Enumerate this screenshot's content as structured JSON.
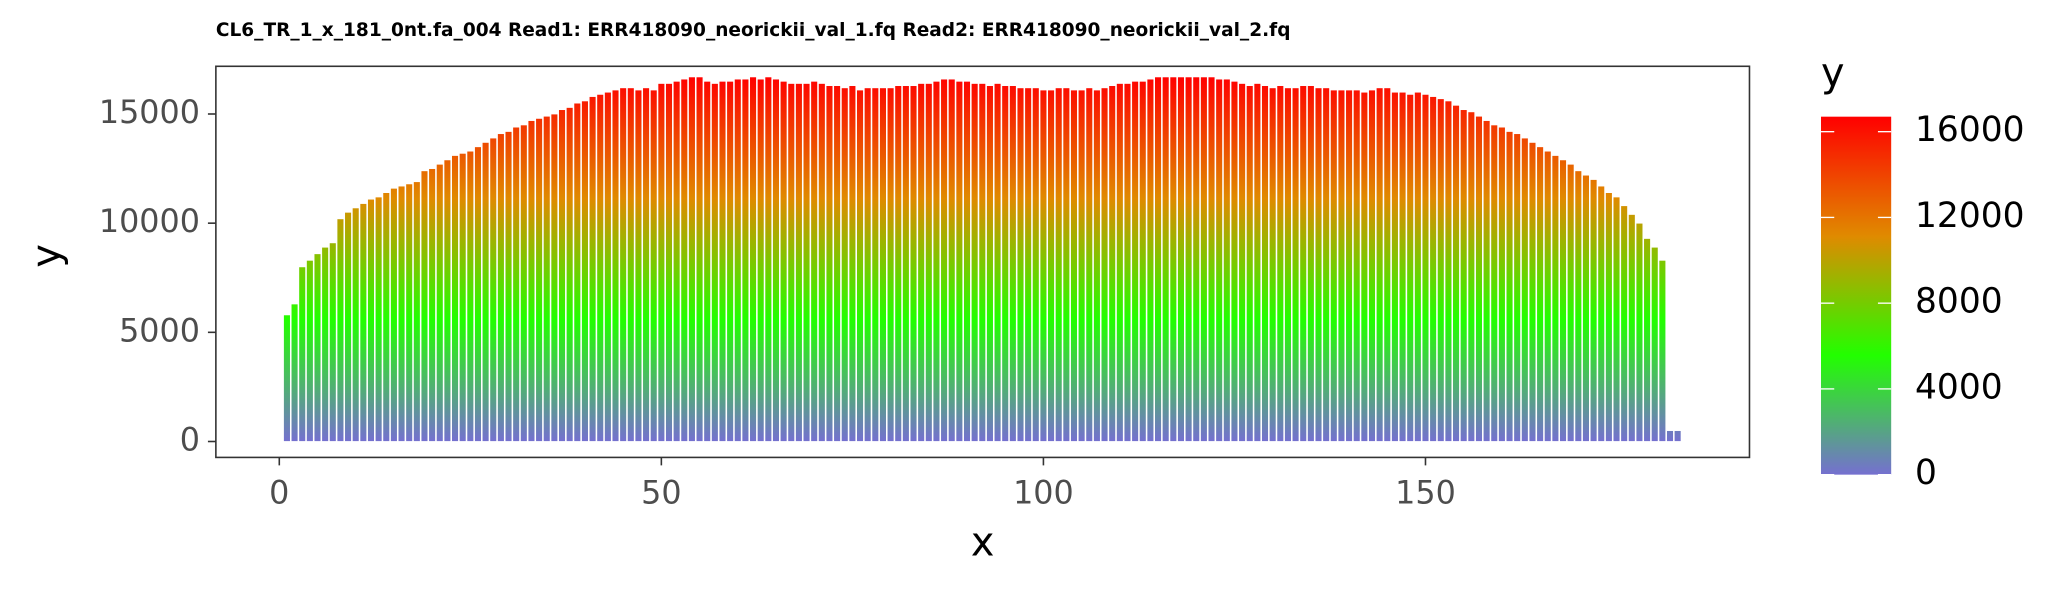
{
  "chart_data": {
    "type": "bar",
    "title": "CL6_TR_1_x_181_0nt.fa_004 Read1: ERR418090_neorickii_val_1.fq Read2: ERR418090_neorickii_val_2.fq",
    "x_label": "x",
    "y_label": "y",
    "legend_title": "y",
    "x": [
      1,
      2,
      3,
      4,
      5,
      6,
      7,
      8,
      9,
      10,
      11,
      12,
      13,
      14,
      15,
      16,
      17,
      18,
      19,
      20,
      21,
      22,
      23,
      24,
      25,
      26,
      27,
      28,
      29,
      30,
      31,
      32,
      33,
      34,
      35,
      36,
      37,
      38,
      39,
      40,
      41,
      42,
      43,
      44,
      45,
      46,
      47,
      48,
      49,
      50,
      51,
      52,
      53,
      54,
      55,
      56,
      57,
      58,
      59,
      60,
      61,
      62,
      63,
      64,
      65,
      66,
      67,
      68,
      69,
      70,
      71,
      72,
      73,
      74,
      75,
      76,
      77,
      78,
      79,
      80,
      81,
      82,
      83,
      84,
      85,
      86,
      87,
      88,
      89,
      90,
      91,
      92,
      93,
      94,
      95,
      96,
      97,
      98,
      99,
      100,
      101,
      102,
      103,
      104,
      105,
      106,
      107,
      108,
      109,
      110,
      111,
      112,
      113,
      114,
      115,
      116,
      117,
      118,
      119,
      120,
      121,
      122,
      123,
      124,
      125,
      126,
      127,
      128,
      129,
      130,
      131,
      132,
      133,
      134,
      135,
      136,
      137,
      138,
      139,
      140,
      141,
      142,
      143,
      144,
      145,
      146,
      147,
      148,
      149,
      150,
      151,
      152,
      153,
      154,
      155,
      156,
      157,
      158,
      159,
      160,
      161,
      162,
      163,
      164,
      165,
      166,
      167,
      168,
      169,
      170,
      171,
      172,
      173,
      174,
      175,
      176,
      177,
      178,
      179,
      180,
      181,
      182,
      183
    ],
    "values": [
      5800,
      6300,
      8000,
      8300,
      8600,
      8900,
      9100,
      10200,
      10500,
      10700,
      10900,
      11100,
      11200,
      11400,
      11600,
      11700,
      11800,
      11900,
      12400,
      12500,
      12700,
      12900,
      13100,
      13200,
      13300,
      13500,
      13700,
      13900,
      14100,
      14200,
      14400,
      14500,
      14700,
      14800,
      14900,
      15000,
      15200,
      15300,
      15500,
      15600,
      15800,
      15900,
      16000,
      16100,
      16200,
      16200,
      16100,
      16200,
      16100,
      16400,
      16400,
      16500,
      16600,
      16700,
      16700,
      16500,
      16400,
      16500,
      16500,
      16600,
      16600,
      16700,
      16600,
      16700,
      16600,
      16500,
      16400,
      16400,
      16400,
      16500,
      16400,
      16300,
      16300,
      16200,
      16300,
      16100,
      16200,
      16200,
      16200,
      16200,
      16300,
      16300,
      16300,
      16400,
      16400,
      16500,
      16600,
      16600,
      16500,
      16500,
      16400,
      16400,
      16300,
      16400,
      16300,
      16300,
      16200,
      16200,
      16200,
      16100,
      16100,
      16200,
      16200,
      16100,
      16100,
      16200,
      16100,
      16200,
      16300,
      16400,
      16400,
      16500,
      16500,
      16600,
      16700,
      16700,
      16700,
      16700,
      16700,
      16700,
      16700,
      16700,
      16600,
      16600,
      16500,
      16400,
      16300,
      16400,
      16300,
      16200,
      16300,
      16200,
      16200,
      16300,
      16300,
      16200,
      16200,
      16100,
      16100,
      16100,
      16100,
      16000,
      16100,
      16200,
      16200,
      16000,
      16000,
      15900,
      16000,
      15900,
      15800,
      15700,
      15600,
      15400,
      15200,
      15100,
      14900,
      14700,
      14500,
      14400,
      14200,
      14100,
      13900,
      13700,
      13500,
      13300,
      13100,
      12900,
      12700,
      12400,
      12200,
      12000,
      11700,
      11400,
      11200,
      10800,
      10400,
      10000,
      9300,
      8900,
      8300,
      500,
      500
    ],
    "xlim": [
      -8.3,
      192.4
    ],
    "ylim": [
      -729,
      17185
    ],
    "xticks": [
      0,
      50,
      100,
      150
    ],
    "yticks": [
      0,
      5000,
      10000,
      15000
    ],
    "color_lim": [
      0,
      16700
    ],
    "color_ticks": [
      0,
      4000,
      8000,
      12000,
      16000
    ],
    "colors": [
      "#7570d0",
      "#22ff00",
      "#e08a00",
      "#ff0000"
    ]
  }
}
